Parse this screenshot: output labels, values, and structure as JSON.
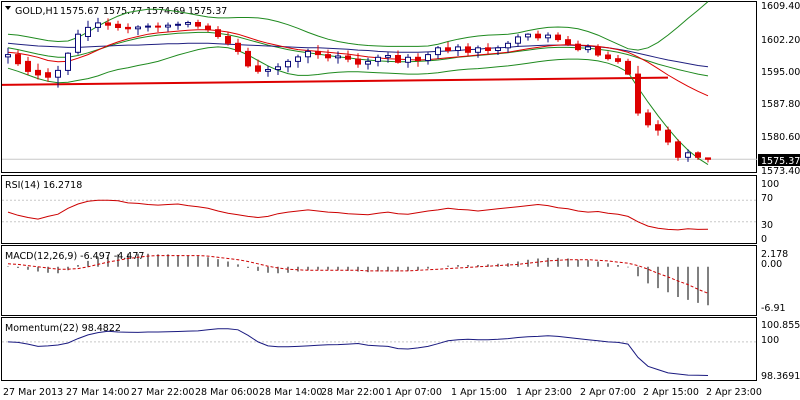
{
  "colors": {
    "bull": "#0a0a78",
    "bear": "#dd0000",
    "ma_red": "#dd0000",
    "ma_blue": "#202080",
    "bollinger": "#1f8a1f",
    "support": "#dd0000",
    "rsi_line": "#cc0000",
    "macd_hist": "#000000",
    "macd_signal": "#cc0000",
    "momentum_line": "#1a1a80",
    "price_marker_bg": "#000000",
    "grid": "#c8c8c8",
    "price_tag_bg": "#000000"
  },
  "chart_data": [
    {
      "type": "candlestick",
      "title": "GOLD,H1",
      "header_values": [
        "1575.67",
        "1575.77",
        "1574.69",
        "1575.37"
      ],
      "current_price_label": "1575.37",
      "y_ticks": [
        "1609.40",
        "1602.20",
        "1595.00",
        "1587.80",
        "1580.60",
        "1573.40"
      ],
      "ylim": [
        1573.0,
        1609.9
      ],
      "x_ticks": [
        "27 Mar 2013",
        "27 Mar 14:00",
        "27 Mar 22:00",
        "28 Mar 06:00",
        "28 Mar 14:00",
        "28 Mar 22:00",
        "1 Apr 07:00",
        "1 Apr 15:00",
        "1 Apr 23:00",
        "2 Apr 07:00",
        "2 Apr 15:00",
        "2 Apr 23:00"
      ],
      "candles": [
        [
          1598.0,
          1600.0,
          1596.5,
          1598.5
        ],
        [
          1598.5,
          1599.5,
          1596.0,
          1596.5
        ],
        [
          1597.0,
          1598.0,
          1594.0,
          1594.8
        ],
        [
          1595.0,
          1596.5,
          1593.0,
          1594.0
        ],
        [
          1594.5,
          1595.5,
          1592.5,
          1593.5
        ],
        [
          1593.5,
          1596.0,
          1591.2,
          1595.0
        ],
        [
          1595.0,
          1599.0,
          1594.0,
          1598.8
        ],
        [
          1599.0,
          1604.0,
          1598.5,
          1603.0
        ],
        [
          1602.5,
          1606.0,
          1601.5,
          1604.5
        ],
        [
          1604.5,
          1606.6,
          1603.5,
          1605.5
        ],
        [
          1605.5,
          1606.5,
          1604.0,
          1605.0
        ],
        [
          1605.2,
          1606.0,
          1603.8,
          1604.5
        ],
        [
          1604.5,
          1605.4,
          1603.2,
          1604.2
        ],
        [
          1604.2,
          1605.0,
          1602.8,
          1604.6
        ],
        [
          1604.6,
          1605.4,
          1603.6,
          1604.8
        ],
        [
          1604.8,
          1605.6,
          1603.5,
          1604.6
        ],
        [
          1604.6,
          1605.6,
          1603.6,
          1605.0
        ],
        [
          1605.0,
          1605.8,
          1604.0,
          1605.2
        ],
        [
          1605.2,
          1606.0,
          1604.5,
          1605.6
        ],
        [
          1605.6,
          1606.2,
          1604.2,
          1604.8
        ],
        [
          1604.8,
          1605.4,
          1603.5,
          1604.0
        ],
        [
          1604.0,
          1604.8,
          1602.0,
          1602.5
        ],
        [
          1602.5,
          1603.5,
          1600.5,
          1601.0
        ],
        [
          1601.0,
          1602.0,
          1598.5,
          1599.2
        ],
        [
          1599.2,
          1600.0,
          1595.6,
          1596.0
        ],
        [
          1596.0,
          1597.4,
          1594.3,
          1594.8
        ],
        [
          1594.8,
          1596.0,
          1593.6,
          1595.2
        ],
        [
          1595.2,
          1596.6,
          1594.0,
          1595.8
        ],
        [
          1595.8,
          1597.5,
          1594.6,
          1597.0
        ],
        [
          1597.0,
          1598.5,
          1595.6,
          1598.0
        ],
        [
          1598.0,
          1599.8,
          1596.6,
          1599.2
        ],
        [
          1599.2,
          1600.6,
          1597.6,
          1598.5
        ],
        [
          1598.5,
          1599.6,
          1597.0,
          1597.8
        ],
        [
          1597.8,
          1599.2,
          1596.5,
          1598.2
        ],
        [
          1598.2,
          1599.4,
          1596.8,
          1597.5
        ],
        [
          1597.5,
          1598.8,
          1595.6,
          1596.4
        ],
        [
          1596.4,
          1597.8,
          1595.2,
          1597.0
        ],
        [
          1597.0,
          1598.5,
          1595.9,
          1597.9
        ],
        [
          1597.9,
          1599.0,
          1596.7,
          1598.3
        ],
        [
          1598.3,
          1599.4,
          1596.5,
          1596.8
        ],
        [
          1596.8,
          1598.6,
          1595.6,
          1597.9
        ],
        [
          1597.9,
          1598.8,
          1595.8,
          1597.2
        ],
        [
          1597.2,
          1599.0,
          1596.3,
          1598.5
        ],
        [
          1598.5,
          1600.4,
          1597.6,
          1600.0
        ],
        [
          1600.0,
          1601.3,
          1598.8,
          1599.4
        ],
        [
          1599.4,
          1600.8,
          1598.2,
          1600.2
        ],
        [
          1600.2,
          1601.0,
          1598.2,
          1599.0
        ],
        [
          1599.0,
          1600.5,
          1597.8,
          1600.0
        ],
        [
          1600.0,
          1601.0,
          1598.5,
          1599.4
        ],
        [
          1599.4,
          1600.5,
          1598.4,
          1600.0
        ],
        [
          1600.0,
          1601.5,
          1598.9,
          1601.0
        ],
        [
          1601.0,
          1603.0,
          1600.2,
          1602.4
        ],
        [
          1602.4,
          1603.2,
          1601.6,
          1603.0
        ],
        [
          1603.0,
          1603.8,
          1601.6,
          1602.2
        ],
        [
          1602.2,
          1603.4,
          1601.2,
          1602.8
        ],
        [
          1602.8,
          1603.4,
          1601.3,
          1601.8
        ],
        [
          1601.8,
          1602.6,
          1600.4,
          1600.8
        ],
        [
          1600.8,
          1601.6,
          1599.2,
          1599.6
        ],
        [
          1599.6,
          1600.8,
          1598.9,
          1600.2
        ],
        [
          1600.2,
          1600.8,
          1598.0,
          1598.4
        ],
        [
          1598.4,
          1599.2,
          1597.2,
          1597.6
        ],
        [
          1597.6,
          1598.4,
          1596.5,
          1597.0
        ],
        [
          1597.0,
          1597.6,
          1594.0,
          1594.2
        ],
        [
          1594.2,
          1596.0,
          1585.0,
          1585.6
        ],
        [
          1585.6,
          1586.4,
          1582.4,
          1583.0
        ],
        [
          1583.0,
          1584.0,
          1580.6,
          1581.8
        ],
        [
          1581.8,
          1582.6,
          1578.5,
          1579.2
        ],
        [
          1579.2,
          1579.8,
          1575.0,
          1575.8
        ],
        [
          1575.8,
          1577.6,
          1574.8,
          1576.8
        ],
        [
          1576.8,
          1577.1,
          1575.2,
          1575.8
        ],
        [
          1575.67,
          1575.77,
          1574.69,
          1575.37
        ]
      ],
      "ma_red": [
        1599.0,
        1598.8,
        1598.4,
        1597.9,
        1597.2,
        1596.9,
        1597.0,
        1597.7,
        1598.5,
        1599.5,
        1600.5,
        1601.3,
        1602.0,
        1602.5,
        1603.0,
        1603.3,
        1603.5,
        1603.7,
        1603.9,
        1604.0,
        1604.0,
        1603.8,
        1603.5,
        1603.0,
        1602.3,
        1601.6,
        1601.0,
        1600.5,
        1600.0,
        1599.6,
        1599.4,
        1599.2,
        1599.0,
        1598.8,
        1598.6,
        1598.3,
        1598.0,
        1597.8,
        1597.6,
        1597.5,
        1597.4,
        1597.3,
        1597.4,
        1597.6,
        1597.8,
        1598.0,
        1598.2,
        1598.4,
        1598.6,
        1598.8,
        1599.0,
        1599.4,
        1599.8,
        1600.1,
        1600.4,
        1600.6,
        1600.7,
        1600.6,
        1600.5,
        1600.3,
        1600.0,
        1599.6,
        1599.0,
        1598.0,
        1596.8,
        1595.4,
        1594.0,
        1592.7,
        1591.5,
        1590.4,
        1589.4
      ],
      "ma_blue": [
        1601.0,
        1600.8,
        1600.6,
        1600.4,
        1600.3,
        1600.2,
        1600.1,
        1600.1,
        1600.2,
        1600.3,
        1600.4,
        1600.5,
        1600.6,
        1600.6,
        1600.7,
        1600.8,
        1600.9,
        1600.9,
        1601.0,
        1601.0,
        1601.0,
        1600.9,
        1600.8,
        1600.7,
        1600.6,
        1600.5,
        1600.4,
        1600.3,
        1600.2,
        1600.1,
        1600.0,
        1600.0,
        1599.9,
        1599.8,
        1599.7,
        1599.5,
        1599.4,
        1599.2,
        1599.1,
        1599.0,
        1599.0,
        1599.0,
        1599.1,
        1599.2,
        1599.3,
        1599.4,
        1599.6,
        1599.7,
        1599.9,
        1600.0,
        1600.1,
        1600.3,
        1600.4,
        1600.5,
        1600.6,
        1600.6,
        1600.6,
        1600.5,
        1600.4,
        1600.2,
        1600.0,
        1599.7,
        1599.3,
        1598.8,
        1598.3,
        1597.8,
        1597.3,
        1596.9,
        1596.5,
        1596.1,
        1595.8
      ],
      "ma_green": [
        1600.0,
        1599.6,
        1599.1,
        1598.6,
        1598.2,
        1597.9,
        1597.9,
        1598.3,
        1598.9,
        1599.6,
        1600.3,
        1601.0,
        1601.6,
        1602.1,
        1602.5,
        1602.8,
        1603.0,
        1603.2,
        1603.3,
        1603.4,
        1603.4,
        1603.2,
        1602.9,
        1602.4,
        1601.8,
        1601.2,
        1600.6,
        1600.1,
        1599.6,
        1599.2,
        1598.9,
        1598.6,
        1598.3,
        1598.0,
        1597.8,
        1597.5,
        1597.3,
        1597.1,
        1597.0,
        1596.9,
        1596.9,
        1597.0,
        1597.1,
        1597.3,
        1597.6,
        1597.9,
        1598.1,
        1598.3,
        1598.5,
        1598.7,
        1598.9,
        1599.2,
        1599.5,
        1599.8,
        1600.0,
        1600.1,
        1600.1,
        1600.0,
        1599.9,
        1599.7,
        1599.4,
        1599.0,
        1598.5,
        1597.8,
        1597.1,
        1596.4,
        1595.8,
        1595.2,
        1594.7,
        1594.2,
        1593.8
      ],
      "bb_upper": [
        1603.0,
        1602.8,
        1602.4,
        1602.0,
        1601.6,
        1601.4,
        1601.5,
        1602.3,
        1603.5,
        1604.8,
        1606.0,
        1607.0,
        1607.8,
        1608.2,
        1608.5,
        1608.5,
        1608.3,
        1608.0,
        1607.6,
        1607.2,
        1606.8,
        1606.6,
        1606.6,
        1606.7,
        1606.7,
        1606.6,
        1606.3,
        1605.8,
        1605.1,
        1604.3,
        1603.4,
        1602.6,
        1601.9,
        1601.4,
        1601.0,
        1600.7,
        1600.5,
        1600.4,
        1600.3,
        1600.3,
        1600.3,
        1600.3,
        1600.4,
        1600.8,
        1601.4,
        1601.9,
        1602.3,
        1602.6,
        1602.8,
        1602.9,
        1603.0,
        1603.3,
        1603.8,
        1604.2,
        1604.5,
        1604.6,
        1604.5,
        1604.2,
        1603.6,
        1602.8,
        1601.8,
        1600.8,
        1599.8,
        1599.5,
        1600.0,
        1601.2,
        1602.8,
        1604.6,
        1606.5,
        1608.3,
        1610.2
      ],
      "bb_lower": [
        1595.5,
        1594.8,
        1594.0,
        1593.2,
        1592.6,
        1592.3,
        1592.4,
        1592.8,
        1593.2,
        1593.8,
        1594.6,
        1595.2,
        1595.6,
        1596.1,
        1596.5,
        1597.0,
        1597.7,
        1598.4,
        1599.0,
        1599.6,
        1600.0,
        1600.2,
        1600.0,
        1599.4,
        1598.4,
        1597.2,
        1596.0,
        1595.0,
        1594.3,
        1593.9,
        1593.9,
        1594.1,
        1594.4,
        1594.6,
        1594.7,
        1594.7,
        1594.6,
        1594.5,
        1594.4,
        1594.3,
        1594.2,
        1594.2,
        1594.3,
        1594.5,
        1594.8,
        1595.1,
        1595.3,
        1595.4,
        1595.6,
        1595.8,
        1596.0,
        1596.3,
        1596.6,
        1596.9,
        1597.2,
        1597.4,
        1597.5,
        1597.5,
        1597.4,
        1597.1,
        1596.6,
        1595.8,
        1594.6,
        1591.2,
        1588.0,
        1585.0,
        1582.2,
        1579.6,
        1577.4,
        1575.6,
        1574.2
      ],
      "support_line": [
        1591.8,
        1593.4
      ]
    },
    {
      "type": "line",
      "title": "RSI(14) 16.2718",
      "y_ticks": [
        "100",
        "70",
        "30",
        "0"
      ],
      "levels": [
        70,
        30
      ],
      "ylim": [
        0,
        100
      ],
      "values": [
        48,
        42,
        38,
        35,
        40,
        44,
        55,
        63,
        68,
        70,
        70,
        69,
        65,
        64,
        62,
        61,
        62,
        63,
        60,
        58,
        55,
        50,
        46,
        43,
        40,
        38,
        40,
        45,
        48,
        50,
        52,
        50,
        48,
        47,
        45,
        44,
        43,
        46,
        48,
        45,
        44,
        47,
        50,
        52,
        55,
        53,
        52,
        50,
        52,
        54,
        56,
        58,
        60,
        62,
        60,
        56,
        54,
        50,
        48,
        49,
        46,
        44,
        40,
        30,
        22,
        18,
        16,
        15,
        17,
        16,
        16.27
      ]
    },
    {
      "type": "bar+line",
      "title": "MACD(12,26,9) -6.497 -4.477",
      "y_ticks": [
        "2.178",
        "0.00",
        "-6.91"
      ],
      "ylim": [
        -7.3,
        2.5
      ],
      "histogram": [
        0.1,
        -0.2,
        -0.5,
        -0.8,
        -1.0,
        -1.1,
        -0.6,
        0.3,
        1.0,
        1.6,
        2.0,
        2.1,
        2.2,
        2.2,
        2.2,
        2.1,
        2.1,
        2.0,
        1.9,
        1.8,
        1.6,
        1.3,
        0.9,
        0.4,
        -0.2,
        -0.7,
        -1.0,
        -1.1,
        -1.0,
        -0.8,
        -0.6,
        -0.5,
        -0.5,
        -0.6,
        -0.7,
        -0.8,
        -0.9,
        -0.8,
        -0.8,
        -0.8,
        -0.7,
        -0.6,
        -0.3,
        0.0,
        0.2,
        0.3,
        0.3,
        0.3,
        0.4,
        0.5,
        0.6,
        0.9,
        1.2,
        1.4,
        1.5,
        1.5,
        1.4,
        1.2,
        1.1,
        0.9,
        0.6,
        0.3,
        -0.1,
        -1.6,
        -2.8,
        -3.6,
        -4.3,
        -5.1,
        -5.6,
        -6.1,
        -6.5
      ],
      "signal": [
        0.5,
        0.4,
        0.2,
        0.0,
        -0.2,
        -0.4,
        -0.4,
        -0.3,
        0.0,
        0.4,
        0.8,
        1.1,
        1.4,
        1.6,
        1.8,
        1.9,
        1.9,
        1.9,
        1.9,
        1.9,
        1.8,
        1.6,
        1.4,
        1.2,
        0.9,
        0.5,
        0.1,
        -0.2,
        -0.4,
        -0.5,
        -0.6,
        -0.6,
        -0.6,
        -0.6,
        -0.6,
        -0.6,
        -0.7,
        -0.7,
        -0.7,
        -0.7,
        -0.7,
        -0.6,
        -0.5,
        -0.4,
        -0.3,
        -0.2,
        -0.1,
        0.0,
        0.1,
        0.2,
        0.3,
        0.4,
        0.6,
        0.8,
        1.0,
        1.1,
        1.2,
        1.2,
        1.2,
        1.1,
        1.0,
        0.8,
        0.6,
        0.2,
        -0.4,
        -1.1,
        -1.7,
        -2.4,
        -3.0,
        -3.8,
        -4.48
      ]
    },
    {
      "type": "line",
      "title": "Momentum(22) 98.4822",
      "y_ticks": [
        "100.8558",
        "100",
        "98.3691"
      ],
      "ylim": [
        98.3691,
        100.8558
      ],
      "values": [
        100.0,
        99.98,
        99.9,
        99.8,
        99.82,
        99.86,
        99.95,
        100.15,
        100.32,
        100.42,
        100.48,
        100.45,
        100.44,
        100.43,
        100.45,
        100.45,
        100.46,
        100.47,
        100.49,
        100.5,
        100.55,
        100.6,
        100.6,
        100.55,
        100.3,
        100.0,
        99.82,
        99.78,
        99.78,
        99.8,
        99.82,
        99.85,
        99.87,
        99.88,
        99.9,
        99.93,
        99.85,
        99.82,
        99.8,
        99.7,
        99.68,
        99.73,
        99.8,
        99.92,
        100.05,
        100.1,
        100.12,
        100.1,
        100.1,
        100.12,
        100.15,
        100.2,
        100.23,
        100.25,
        100.28,
        100.25,
        100.2,
        100.15,
        100.1,
        100.05,
        100.0,
        99.98,
        99.9,
        99.3,
        98.9,
        98.75,
        98.6,
        98.55,
        98.5,
        98.49,
        98.4822
      ]
    }
  ]
}
